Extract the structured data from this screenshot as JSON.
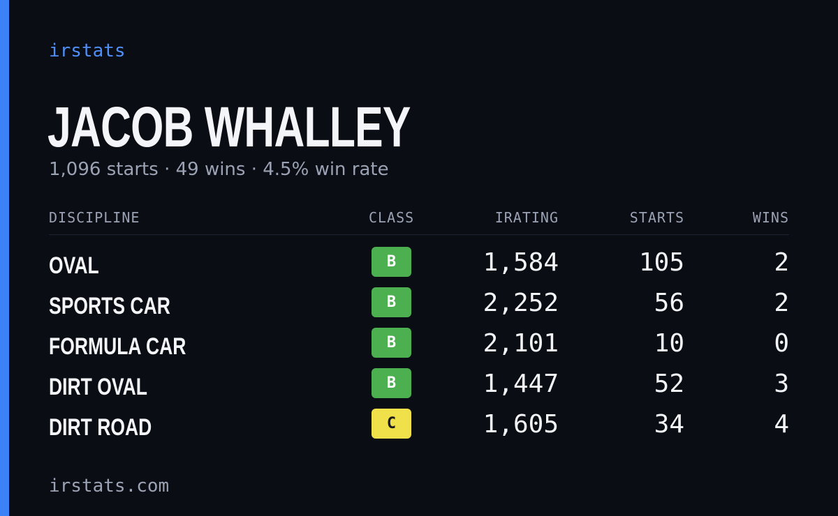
{
  "brand": "irstats",
  "driver": {
    "name": "JACOB WHALLEY",
    "summary": "1,096 starts · 49 wins · 4.5% win rate"
  },
  "table": {
    "headers": {
      "discipline": "DISCIPLINE",
      "class": "CLASS",
      "irating": "IRATING",
      "starts": "STARTS",
      "wins": "WINS"
    },
    "rows": [
      {
        "discipline": "OVAL",
        "class": "B",
        "irating": "1,584",
        "starts": "105",
        "wins": "2"
      },
      {
        "discipline": "SPORTS CAR",
        "class": "B",
        "irating": "2,252",
        "starts": "56",
        "wins": "2"
      },
      {
        "discipline": "FORMULA CAR",
        "class": "B",
        "irating": "2,101",
        "starts": "10",
        "wins": "0"
      },
      {
        "discipline": "DIRT OVAL",
        "class": "B",
        "irating": "1,447",
        "starts": "52",
        "wins": "3"
      },
      {
        "discipline": "DIRT ROAD",
        "class": "C",
        "irating": "1,605",
        "starts": "34",
        "wins": "4"
      }
    ]
  },
  "class_colors": {
    "B": {
      "bg": "#4caf50",
      "fg": "#ffffff"
    },
    "C": {
      "bg": "#f0e14a",
      "fg": "#1a1a1a"
    }
  },
  "accent_color": "#3b82f6",
  "footer": "irstats.com"
}
